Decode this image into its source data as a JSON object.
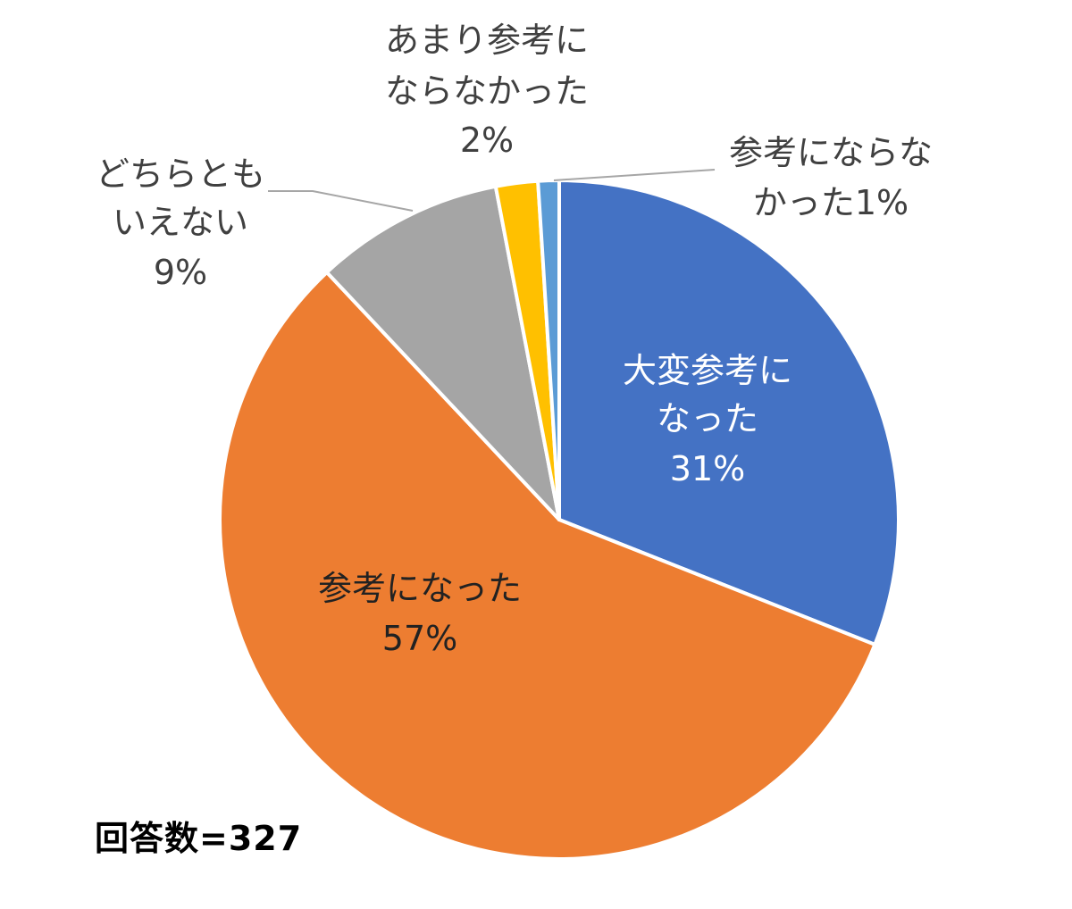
{
  "chart_data": {
    "type": "pie",
    "slices": [
      {
        "label_lines": [
          "大変参考に",
          "なった"
        ],
        "value": 31,
        "value_text": "31%",
        "color": "#4472C4",
        "label_color": "#ffffff"
      },
      {
        "label_lines": [
          "参考になった"
        ],
        "value": 57,
        "value_text": "57%",
        "color": "#ED7D31",
        "label_color": "#222222"
      },
      {
        "label_lines": [
          "どちらとも",
          "いえない"
        ],
        "value": 9,
        "value_text": "9%",
        "color": "#A5A5A5",
        "label_color": "#404040"
      },
      {
        "label_lines": [
          "あまり参考に",
          "ならなかった"
        ],
        "value": 2,
        "value_text": "2%",
        "color": "#FFC000",
        "label_color": "#404040"
      },
      {
        "label_lines": [
          "参考にならな",
          "かった1%"
        ],
        "value": 1,
        "value_text": "",
        "color": "#5B9BD5",
        "label_color": "#404040"
      }
    ],
    "start_angle_deg": 0,
    "direction": "clockwise",
    "leader_line_color": "#A6A6A6"
  },
  "footnote": "回答数=327"
}
